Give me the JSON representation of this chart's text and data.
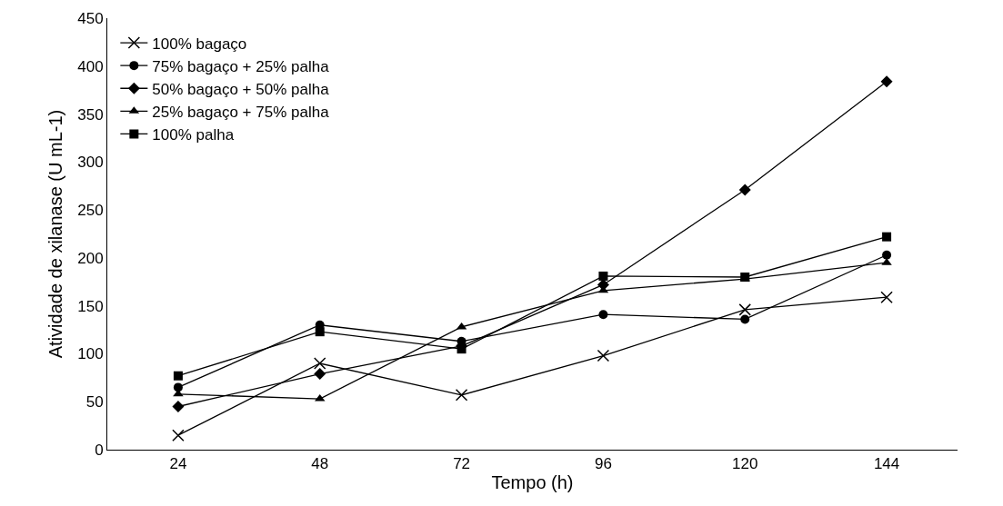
{
  "chart_data": {
    "type": "line",
    "xlabel": "Tempo (h)",
    "ylabel": "Atividade de xilanase (U mL-1)",
    "categories": [
      "24",
      "48",
      "72",
      "96",
      "120",
      "144"
    ],
    "ylim": [
      0,
      450
    ],
    "yticks": [
      0,
      50,
      100,
      150,
      200,
      250,
      300,
      350,
      400,
      450
    ],
    "grid": false,
    "legend": "top left",
    "line_style": "solid",
    "series": [
      {
        "name": "100% bagaço",
        "color": "#000000",
        "marker": "cross",
        "values": [
          15,
          90,
          57,
          98,
          146,
          159
        ]
      },
      {
        "name": "75% bagaço + 25% palha",
        "color": "#000000",
        "marker": "circle",
        "values": [
          65,
          130,
          113,
          141,
          136,
          203
        ]
      },
      {
        "name": "50% bagaço + 50% palha",
        "color": "#000000",
        "marker": "diamond",
        "values": [
          45,
          79,
          108,
          172,
          271,
          384
        ]
      },
      {
        "name": "25% bagaço + 75% palha",
        "color": "#000000",
        "marker": "triangle",
        "values": [
          58,
          53,
          128,
          166,
          178,
          195
        ]
      },
      {
        "name": "100% palha",
        "color": "#000000",
        "marker": "square",
        "values": [
          77,
          123,
          105,
          181,
          180,
          222
        ]
      }
    ]
  }
}
